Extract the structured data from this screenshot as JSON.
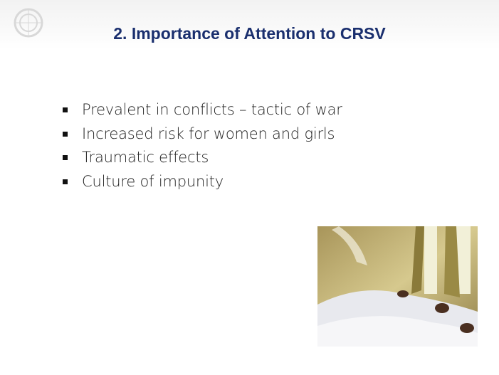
{
  "slide": {
    "title": "2. Importance of Attention to CRSV",
    "bullets": [
      "Prevalent in conflicts – tactic of war",
      "Increased risk for women and girls",
      "Traumatic effects",
      "Culture of impunity"
    ]
  }
}
